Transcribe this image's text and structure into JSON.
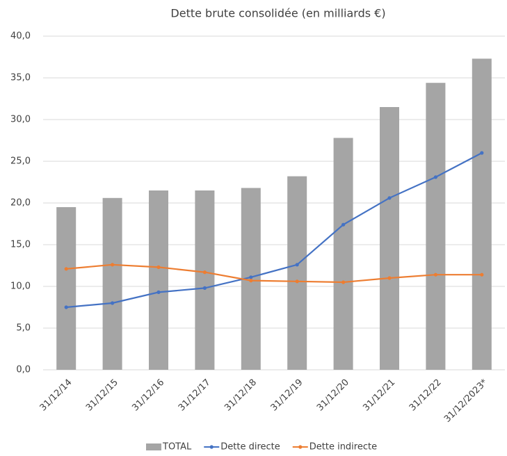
{
  "chart_data": {
    "type": "combo",
    "title": "Dette brute consolidée (en milliards €)",
    "categories": [
      "31/12/14",
      "31/12/15",
      "31/12/16",
      "31/12/17",
      "31/12/18",
      "31/12/19",
      "31/12/20",
      "31/12/21",
      "31/12/22",
      "31/12/2023*"
    ],
    "series": [
      {
        "name": "TOTAL",
        "type": "bar",
        "color": "#a5a5a5",
        "values": [
          19.5,
          20.6,
          21.5,
          21.5,
          21.8,
          23.2,
          27.8,
          31.5,
          34.4,
          37.3
        ]
      },
      {
        "name": "Dette directe",
        "type": "line",
        "color": "#4472c4",
        "values": [
          7.5,
          8.0,
          9.3,
          9.8,
          11.1,
          12.6,
          17.4,
          20.6,
          23.1,
          26.0
        ]
      },
      {
        "name": "Dette indirecte",
        "type": "line",
        "color": "#ed7d31",
        "values": [
          12.1,
          12.6,
          12.3,
          11.7,
          10.7,
          10.6,
          10.5,
          11.0,
          11.4,
          11.4
        ]
      }
    ],
    "ylim": [
      0,
      40
    ],
    "yticks": [
      {
        "value": 0,
        "label": "0,0"
      },
      {
        "value": 5,
        "label": "5,0"
      },
      {
        "value": 10,
        "label": "10,0"
      },
      {
        "value": 15,
        "label": "15,0"
      },
      {
        "value": 20,
        "label": "20,0"
      },
      {
        "value": 25,
        "label": "25,0"
      },
      {
        "value": 30,
        "label": "30,0"
      },
      {
        "value": 35,
        "label": "35,0"
      },
      {
        "value": 40,
        "label": "40,0"
      }
    ],
    "grid": true
  }
}
